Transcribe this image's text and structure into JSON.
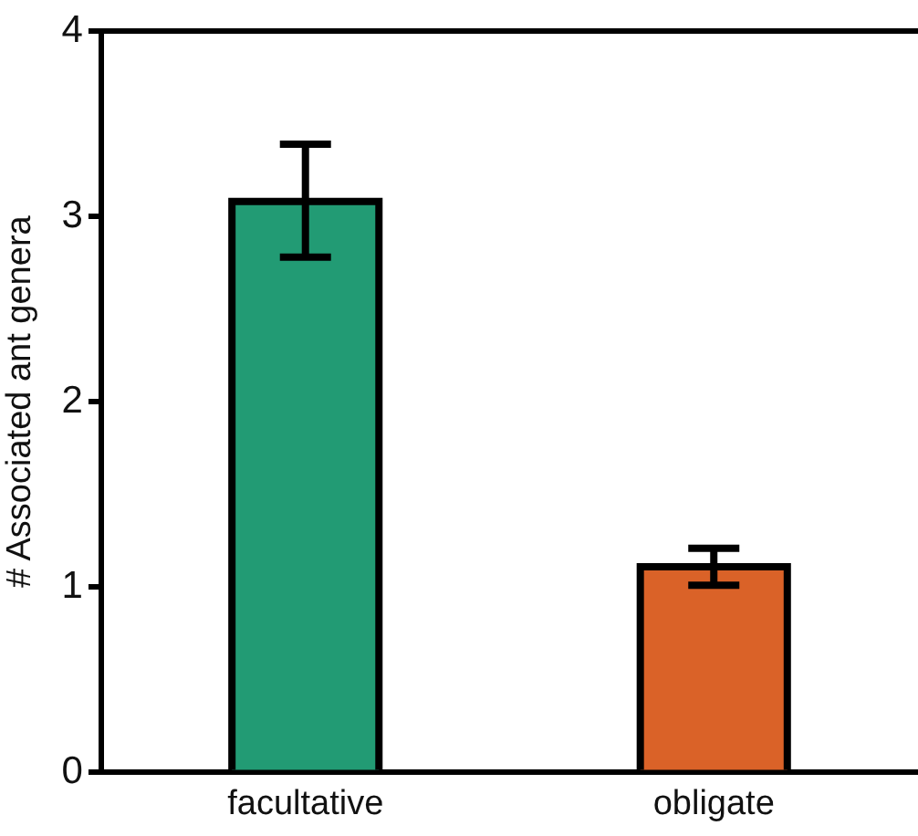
{
  "chart_data": {
    "type": "bar",
    "ylabel": "# Associated ant genera",
    "categories": [
      "facultative",
      "obligate"
    ],
    "values": [
      3.08,
      1.11
    ],
    "colors": [
      "#229b74",
      "#da6228"
    ],
    "errors": [
      [
        2.78,
        3.39
      ],
      [
        1.01,
        1.21
      ]
    ],
    "ylim": [
      0,
      4
    ],
    "yticks": [
      0,
      1,
      2,
      3,
      4
    ],
    "grid": false,
    "legend": false
  }
}
